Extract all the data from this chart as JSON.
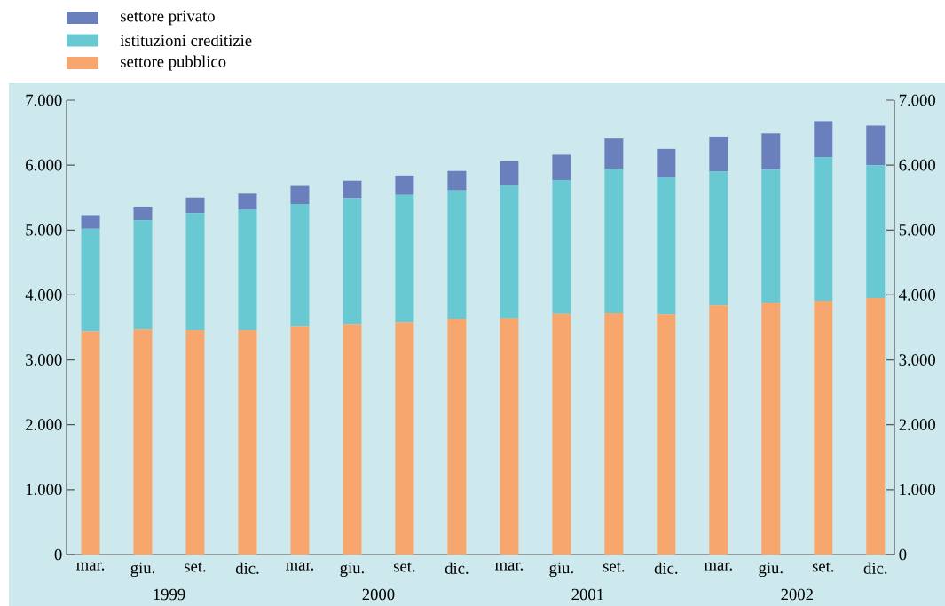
{
  "chart_data": {
    "type": "bar",
    "stacked": true,
    "legend": "top left",
    "categories": [
      "mar.",
      "giu.",
      "set.",
      "dic.",
      "mar.",
      "giu.",
      "set.",
      "dic.",
      "mar.",
      "giu.",
      "set.",
      "dic.",
      "mar.",
      "giu.",
      "set.",
      "dic."
    ],
    "series": [
      {
        "name": "settore pubblico",
        "color": "#f7a66e",
        "values": [
          3440,
          3470,
          3460,
          3460,
          3520,
          3550,
          3580,
          3630,
          3640,
          3710,
          3720,
          3700,
          3840,
          3880,
          3910,
          3950
        ]
      },
      {
        "name": "istituzioni creditizie",
        "color": "#69c9d3",
        "values": [
          1580,
          1680,
          1800,
          1850,
          1880,
          1940,
          1960,
          1980,
          2050,
          2060,
          2220,
          2110,
          2060,
          2050,
          2210,
          2050
        ]
      },
      {
        "name": "settore privato",
        "color": "#6a80bd",
        "values": [
          210,
          210,
          240,
          250,
          280,
          270,
          300,
          300,
          370,
          390,
          470,
          440,
          540,
          560,
          560,
          610
        ]
      }
    ],
    "ylim": [
      0,
      7000
    ],
    "yticks": [
      {
        "value": 0,
        "label": "0"
      },
      {
        "value": 1000,
        "label": "1.000"
      },
      {
        "value": 2000,
        "label": "2.000"
      },
      {
        "value": 3000,
        "label": "3.000"
      },
      {
        "value": 4000,
        "label": "4.000"
      },
      {
        "value": 5000,
        "label": "5.000"
      },
      {
        "value": 6000,
        "label": "6.000"
      },
      {
        "value": 7000,
        "label": "7.000"
      }
    ],
    "y2lim": [
      0,
      7000
    ],
    "y2ticks": [
      {
        "value": 0,
        "label": "0"
      },
      {
        "value": 1000,
        "label": "1.000"
      },
      {
        "value": 2000,
        "label": "2.000"
      },
      {
        "value": 3000,
        "label": "3.000"
      },
      {
        "value": 4000,
        "label": "4.000"
      },
      {
        "value": 5000,
        "label": "5.000"
      },
      {
        "value": 6000,
        "label": "6.000"
      },
      {
        "value": 7000,
        "label": "7.000"
      }
    ],
    "annotations": [
      "1999",
      "2000",
      "2001",
      "2002"
    ]
  }
}
